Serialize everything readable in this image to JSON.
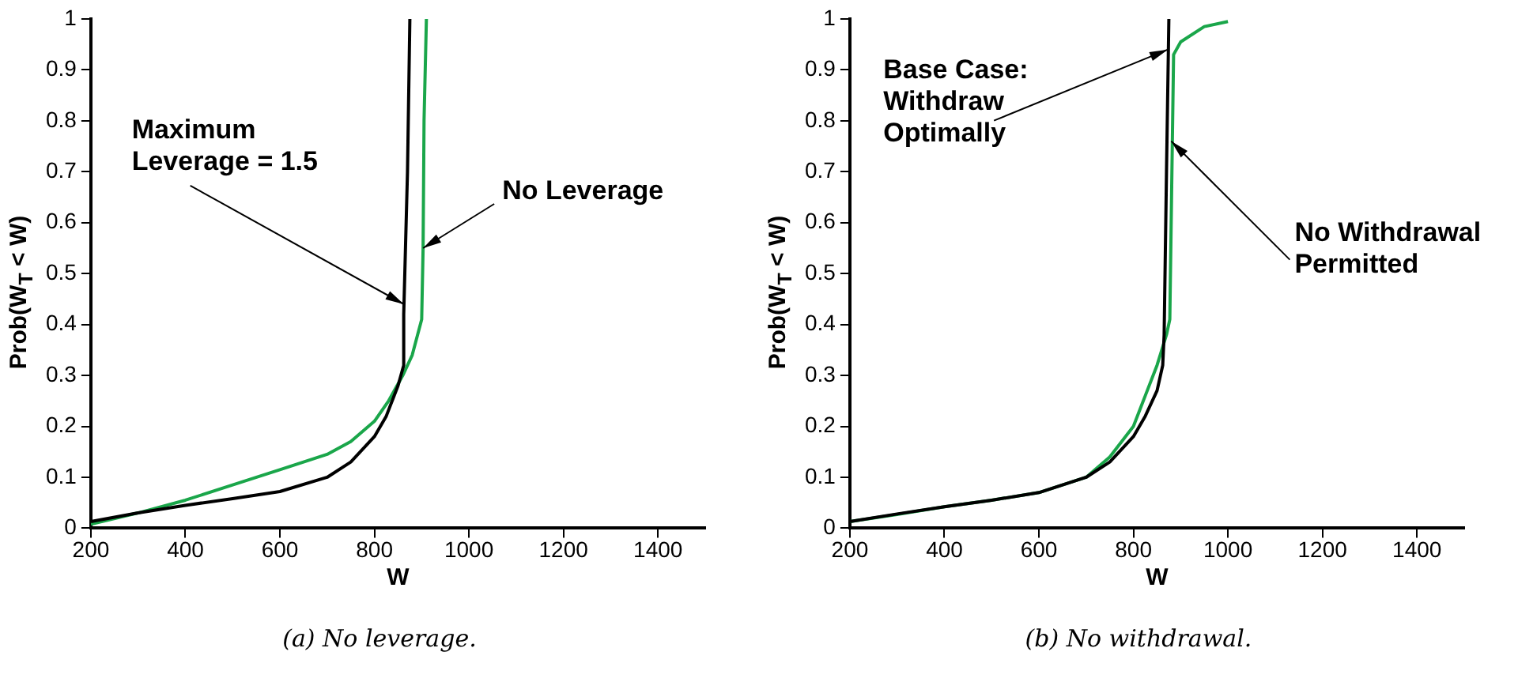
{
  "chart_data": [
    {
      "type": "line",
      "xlabel": "W",
      "ylabel": "Prob(W$_{T}$ < W)",
      "xlim": [
        200,
        1500
      ],
      "xticks": [
        200,
        400,
        600,
        800,
        1000,
        1200,
        1400
      ],
      "ylim": [
        0,
        1
      ],
      "yticks": [
        0,
        0.1,
        0.2,
        0.3,
        0.4,
        0.5,
        0.6,
        0.7,
        0.8,
        0.9,
        1
      ],
      "grid": false,
      "legend": false,
      "marker": "none",
      "line_style": "solid",
      "series": [
        {
          "color": "#000000",
          "x": [
            200,
            300,
            400,
            500,
            600,
            700,
            750,
            800,
            825,
            850,
            862,
            862,
            870,
            875
          ],
          "values": [
            0.013,
            0.03,
            0.045,
            0.058,
            0.072,
            0.1,
            0.13,
            0.18,
            0.22,
            0.28,
            0.32,
            0.42,
            0.7,
            1.0
          ]
        },
        {
          "color": "#1aa64a",
          "x": [
            200,
            300,
            400,
            500,
            600,
            700,
            750,
            800,
            830,
            860,
            880,
            900,
            903,
            905,
            910
          ],
          "values": [
            0.008,
            0.03,
            0.055,
            0.085,
            0.115,
            0.145,
            0.17,
            0.21,
            0.25,
            0.3,
            0.34,
            0.41,
            0.55,
            0.8,
            1.0
          ]
        }
      ],
      "annotations": [
        {
          "text": "Maximum\nLeverage = 1.5",
          "x": 862,
          "y": 0.44
        },
        {
          "text": "No Leverage",
          "x": 903,
          "y": 0.55
        },
        "(a) No leverage."
      ]
    },
    {
      "type": "line",
      "xlabel": "W",
      "ylabel": "Prob(W$_{T}$ < W)",
      "xlim": [
        200,
        1500
      ],
      "xticks": [
        200,
        400,
        600,
        800,
        1000,
        1200,
        1400
      ],
      "ylim": [
        0,
        1
      ],
      "yticks": [
        0,
        0.1,
        0.2,
        0.3,
        0.4,
        0.5,
        0.6,
        0.7,
        0.8,
        0.9,
        1
      ],
      "grid": false,
      "legend": false,
      "marker": "none",
      "line_style": "solid",
      "series": [
        {
          "color": "#000000",
          "x": [
            200,
            300,
            400,
            500,
            600,
            700,
            750,
            800,
            825,
            850,
            862,
            865,
            870,
            875
          ],
          "values": [
            0.013,
            0.028,
            0.042,
            0.055,
            0.07,
            0.1,
            0.13,
            0.18,
            0.22,
            0.27,
            0.32,
            0.38,
            0.7,
            1.0
          ]
        },
        {
          "color": "#1aa64a",
          "x": [
            200,
            300,
            400,
            500,
            600,
            650,
            700,
            750,
            800,
            825,
            850,
            870,
            877,
            885,
            900,
            950,
            1000
          ],
          "values": [
            0.013,
            0.027,
            0.042,
            0.055,
            0.07,
            0.085,
            0.1,
            0.14,
            0.2,
            0.26,
            0.32,
            0.38,
            0.41,
            0.93,
            0.955,
            0.985,
            0.995
          ]
        }
      ],
      "annotations": [
        {
          "text": "Base Case:\nWithdraw\nOptimally",
          "x": 873,
          "y": 0.94
        },
        {
          "text": "No Withdrawal\nPermitted",
          "x": 880,
          "y": 0.76
        },
        "(b) No withdrawal."
      ]
    }
  ]
}
